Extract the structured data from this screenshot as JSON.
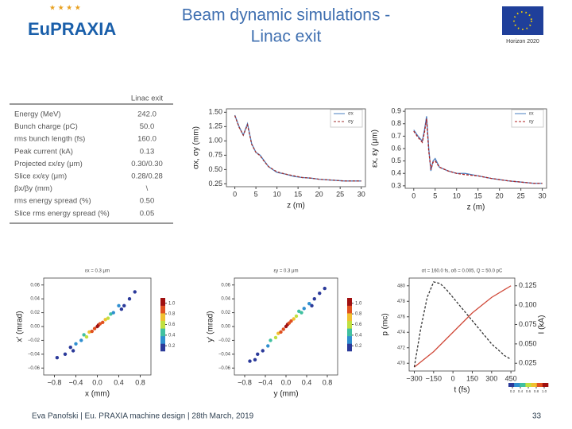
{
  "header": {
    "logo": "EuPRAXIA",
    "title_line1": "Beam dynamic simulations -",
    "title_line2": "Linac exit",
    "program": "Horizon 2020"
  },
  "table": {
    "caption": "Linac exit",
    "rows": [
      [
        "Energy (MeV)",
        "242.0"
      ],
      [
        "Bunch charge (pC)",
        "50.0"
      ],
      [
        "rms bunch length (fs)",
        "160.0"
      ],
      [
        "Peak current (kA)",
        "0.13"
      ],
      [
        "Projected εx/εy (μm)",
        "0.30/0.30"
      ],
      [
        "Slice εx/εy (μm)",
        "0.28/0.28"
      ],
      [
        "βx/βy (mm)",
        "\\"
      ],
      [
        "rms energy spread (%)",
        "0.50"
      ],
      [
        "Slice rms energy spread (%)",
        "0.05"
      ]
    ]
  },
  "charts": [
    {
      "type": "line",
      "xlabel": "z (m)",
      "ylabel": "σx, σy (mm)",
      "xlim": [
        -2,
        31
      ],
      "ylim": [
        0.2,
        1.56
      ],
      "xticks": [
        0,
        5,
        10,
        15,
        20,
        25,
        30
      ],
      "yticks": [
        0.25,
        {
          "value": 0.5,
          "label": "0.50"
        },
        0.75,
        {
          "value": 1,
          "label": "1.00"
        },
        1.25,
        {
          "value": 1.5,
          "label": "1.50"
        }
      ],
      "legend": "upper right",
      "series": [
        {
          "name": "σx",
          "color": "#4a7fc0",
          "dash": false,
          "x": [
            0,
            1,
            2,
            3,
            4,
            5,
            6,
            7,
            8,
            10,
            12,
            14,
            16,
            18,
            20,
            22,
            24,
            26,
            28,
            30
          ],
          "values": [
            1.45,
            1.25,
            1.1,
            1.3,
            0.95,
            0.8,
            0.75,
            0.65,
            0.55,
            0.45,
            0.42,
            0.38,
            0.36,
            0.35,
            0.33,
            0.32,
            0.31,
            0.3,
            0.3,
            0.3
          ]
        },
        {
          "name": "σy",
          "color": "#a03030",
          "dash": true,
          "x": [
            0,
            1,
            2,
            3,
            4,
            5,
            6,
            7,
            8,
            10,
            12,
            14,
            16,
            18,
            20,
            22,
            24,
            26,
            28,
            30
          ],
          "values": [
            1.44,
            1.24,
            1.1,
            1.28,
            0.94,
            0.8,
            0.74,
            0.64,
            0.55,
            0.46,
            0.42,
            0.39,
            0.36,
            0.35,
            0.33,
            0.32,
            0.31,
            0.3,
            0.3,
            0.3
          ]
        }
      ]
    },
    {
      "type": "line",
      "xlabel": "z (m)",
      "ylabel": "εx, εy (μm)",
      "xlim": [
        -2,
        31
      ],
      "ylim": [
        0.28,
        0.92
      ],
      "xticks": [
        0,
        5,
        10,
        15,
        20,
        25,
        30
      ],
      "yticks": [
        0.3,
        0.4,
        0.5,
        0.6,
        0.7,
        0.8,
        0.9
      ],
      "legend": "upper right",
      "series": [
        {
          "name": "εx",
          "color": "#4a7fc0",
          "dash": false,
          "x": [
            0,
            1,
            2,
            2.5,
            3,
            3.5,
            4,
            4.5,
            5,
            6,
            8,
            10,
            12,
            15,
            18,
            20,
            22,
            25,
            28,
            30
          ],
          "values": [
            0.75,
            0.7,
            0.66,
            0.75,
            0.86,
            0.6,
            0.42,
            0.5,
            0.52,
            0.45,
            0.42,
            0.4,
            0.4,
            0.38,
            0.36,
            0.35,
            0.34,
            0.33,
            0.32,
            0.32
          ]
        },
        {
          "name": "εy",
          "color": "#b02020",
          "dash": true,
          "x": [
            0,
            1,
            2,
            2.5,
            3,
            3.5,
            4,
            4.5,
            5,
            6,
            8,
            10,
            12,
            15,
            18,
            20,
            22,
            25,
            28,
            30
          ],
          "values": [
            0.74,
            0.69,
            0.65,
            0.73,
            0.84,
            0.58,
            0.43,
            0.49,
            0.5,
            0.45,
            0.42,
            0.4,
            0.39,
            0.38,
            0.36,
            0.35,
            0.34,
            0.33,
            0.32,
            0.32
          ]
        }
      ]
    },
    {
      "type": "scatter",
      "title": "εx = 0.3 μm",
      "xlabel": "x (mm)",
      "ylabel": "x' (mrad)",
      "xlim": [
        -1,
        1
      ],
      "ylim": [
        -0.07,
        0.07
      ],
      "xticks": [
        {
          "value": -0.8,
          "label": "−0.8"
        },
        {
          "value": -0.4,
          "label": "−0.4"
        },
        {
          "value": 0,
          "label": "0.0"
        },
        0.4,
        0.8
      ],
      "yticks": [
        {
          "value": -0.06,
          "label": "−0.06"
        },
        {
          "value": -0.04,
          "label": "−0.04"
        },
        {
          "value": -0.02,
          "label": "−0.02"
        },
        {
          "value": 0,
          "label": "0.00"
        },
        0.02,
        0.04,
        0.06
      ],
      "x": [
        -0.75,
        -0.6,
        -0.5,
        -0.4,
        -0.3,
        -0.25,
        -0.2,
        -0.15,
        -0.1,
        -0.05,
        0,
        0.02,
        0.05,
        0.1,
        0.15,
        0.2,
        0.25,
        0.3,
        0.4,
        0.5,
        0.6,
        0.7,
        -0.45,
        0.45
      ],
      "values": [
        -0.045,
        -0.04,
        -0.03,
        -0.025,
        -0.02,
        -0.012,
        -0.015,
        -0.008,
        -0.007,
        -0.003,
        0,
        0.002,
        0.004,
        0.006,
        0.01,
        0.012,
        0.018,
        0.02,
        0.03,
        0.03,
        0.04,
        0.05,
        -0.035,
        0.025
      ],
      "density": [
        0.15,
        0.2,
        0.2,
        0.25,
        0.35,
        0.5,
        0.55,
        0.7,
        0.85,
        0.95,
        1.0,
        1.0,
        0.95,
        0.85,
        0.7,
        0.55,
        0.45,
        0.35,
        0.25,
        0.2,
        0.15,
        0.15,
        0.15,
        0.2
      ],
      "colormap": [
        "#2b3a9a",
        "#2f8fd0",
        "#40c0a0",
        "#c0e040",
        "#f0c030",
        "#e05020",
        "#a01010"
      ],
      "colorbar": "vertical",
      "colorbar_lim": [
        0.1,
        1.1
      ],
      "colorbar_ticks": [
        0.2,
        0.4,
        0.6,
        0.8,
        {
          "value": 1,
          "label": "1.0"
        }
      ]
    },
    {
      "type": "scatter",
      "title": "εy = 0.3 μm",
      "xlabel": "y (mm)",
      "ylabel": "y' (mrad)",
      "xlim": [
        -1,
        1
      ],
      "ylim": [
        -0.07,
        0.07
      ],
      "xticks": [
        {
          "value": -0.8,
          "label": "−0.8"
        },
        {
          "value": -0.4,
          "label": "−0.4"
        },
        {
          "value": 0,
          "label": "0.0"
        },
        0.4,
        0.8
      ],
      "yticks": [
        {
          "value": -0.06,
          "label": "−0.06"
        },
        {
          "value": -0.04,
          "label": "−0.04"
        },
        {
          "value": -0.02,
          "label": "−0.02"
        },
        {
          "value": 0,
          "label": "0.00"
        },
        0.02,
        0.04,
        0.06
      ],
      "x": [
        -0.7,
        -0.55,
        -0.45,
        -0.35,
        -0.3,
        -0.2,
        -0.15,
        -0.1,
        -0.05,
        0,
        0.03,
        0.06,
        0.1,
        0.15,
        0.2,
        0.3,
        0.35,
        0.45,
        0.55,
        0.65,
        0.75,
        -0.6,
        0.5,
        0.25
      ],
      "values": [
        -0.05,
        -0.04,
        -0.035,
        -0.028,
        -0.02,
        -0.016,
        -0.01,
        -0.008,
        -0.004,
        0,
        0.003,
        0.005,
        0.008,
        0.011,
        0.015,
        0.02,
        0.026,
        0.033,
        0.04,
        0.048,
        0.055,
        -0.048,
        0.03,
        0.022
      ],
      "density": [
        0.15,
        0.2,
        0.2,
        0.3,
        0.4,
        0.55,
        0.7,
        0.85,
        0.95,
        1.0,
        1.0,
        0.95,
        0.85,
        0.7,
        0.55,
        0.4,
        0.3,
        0.25,
        0.2,
        0.15,
        0.15,
        0.15,
        0.2,
        0.45
      ],
      "colormap": [
        "#2b3a9a",
        "#2f8fd0",
        "#40c0a0",
        "#c0e040",
        "#f0c030",
        "#e05020",
        "#a01010"
      ],
      "colorbar": "vertical",
      "colorbar_lim": [
        0.1,
        1.1
      ],
      "colorbar_ticks": [
        0.2,
        0.4,
        0.6,
        0.8,
        {
          "value": 1,
          "label": "1.0"
        }
      ]
    },
    {
      "type": "line",
      "title": "σt = 160.0 fs, σδ = 0.005, Q = 50.0 pC",
      "xlabel": "t (fs)",
      "ylabel": "p (mc)",
      "y2label": "I (kA)",
      "xlim": [
        -340,
        480
      ],
      "ylim": [
        469,
        481
      ],
      "y2lim": [
        0.015,
        0.135
      ],
      "xticks": [
        {
          "value": -300,
          "label": "−300"
        },
        {
          "value": -150,
          "label": "−150"
        },
        0,
        150,
        300,
        450
      ],
      "yticks": [
        470,
        472,
        474,
        476,
        478,
        480
      ],
      "y2ticks": [
        0.025,
        {
          "value": 0.05,
          "label": "0.050"
        },
        0.075,
        {
          "value": 0.1,
          "label": "0.100"
        },
        0.125
      ],
      "colormap": [
        "#2b3a9a",
        "#2f8fd0",
        "#40c0a0",
        "#c0e040",
        "#f0c030",
        "#e05020",
        "#a01010"
      ],
      "colorbar": "horizontal",
      "colorbar_lim": [
        0.1,
        1.1
      ],
      "colorbar_ticks": [
        0.2,
        0.4,
        0.6,
        0.8,
        {
          "value": 1,
          "label": "1.0"
        }
      ],
      "series": [
        {
          "name": "p",
          "color": "#d04a3a",
          "dash": false,
          "x": [
            -300,
            -150,
            0,
            150,
            300,
            450
          ],
          "values": [
            469.5,
            471.5,
            474,
            476.5,
            478.5,
            480
          ]
        },
        {
          "name": "I",
          "color": "#333333",
          "dash": true,
          "axis": "y2",
          "x": [
            -300,
            -250,
            -200,
            -150,
            -100,
            -50,
            0,
            100,
            200,
            300,
            400,
            450
          ],
          "values": [
            0.02,
            0.07,
            0.11,
            0.13,
            0.128,
            0.12,
            0.11,
            0.09,
            0.07,
            0.05,
            0.035,
            0.03
          ]
        }
      ]
    }
  ],
  "footer": {
    "text": "Eva Panofski | Eu. PRAXIA machine design | 28th March, 2019",
    "page": "33"
  }
}
